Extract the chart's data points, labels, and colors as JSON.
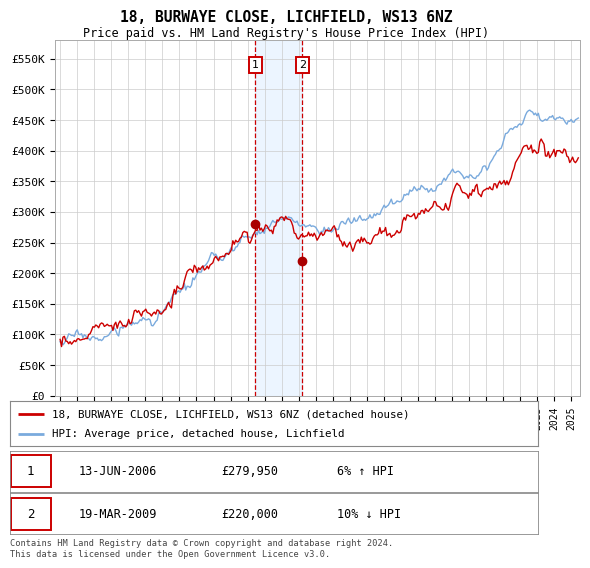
{
  "title": "18, BURWAYE CLOSE, LICHFIELD, WS13 6NZ",
  "subtitle": "Price paid vs. HM Land Registry's House Price Index (HPI)",
  "ylim": [
    0,
    580000
  ],
  "yticks": [
    0,
    50000,
    100000,
    150000,
    200000,
    250000,
    300000,
    350000,
    400000,
    450000,
    500000,
    550000
  ],
  "ytick_labels": [
    "£0",
    "£50K",
    "£100K",
    "£150K",
    "£200K",
    "£250K",
    "£300K",
    "£350K",
    "£400K",
    "£450K",
    "£500K",
    "£550K"
  ],
  "hpi_color": "#7aaadd",
  "price_color": "#cc0000",
  "marker_color": "#aa0000",
  "transaction1_date": 2006.45,
  "transaction1_price": 279950,
  "transaction2_date": 2009.21,
  "transaction2_price": 220000,
  "legend_label1": "18, BURWAYE CLOSE, LICHFIELD, WS13 6NZ (detached house)",
  "legend_label2": "HPI: Average price, detached house, Lichfield",
  "table_row1_date": "13-JUN-2006",
  "table_row1_price": "£279,950",
  "table_row1_hpi": "6% ↑ HPI",
  "table_row2_date": "19-MAR-2009",
  "table_row2_price": "£220,000",
  "table_row2_hpi": "10% ↓ HPI",
  "footer": "Contains HM Land Registry data © Crown copyright and database right 2024.\nThis data is licensed under the Open Government Licence v3.0.",
  "background_color": "#ffffff",
  "grid_color": "#cccccc",
  "shade_color": "#ddeeff"
}
